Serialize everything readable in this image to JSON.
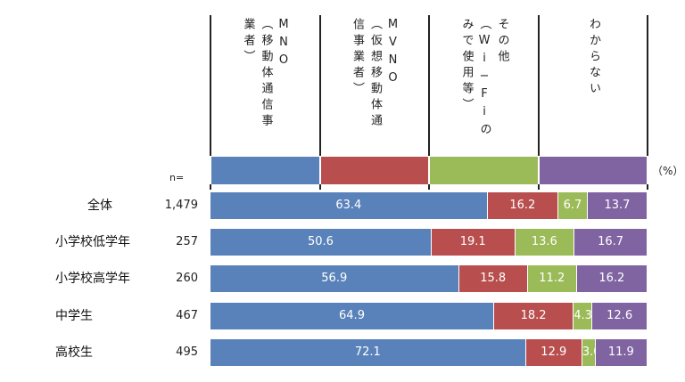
{
  "chart_data": {
    "type": "bar",
    "orientation": "horizontal",
    "stacked": true,
    "unit_label": "（%）",
    "n_label": "n=",
    "series": [
      {
        "name": "MNO（移動体通信事業者）",
        "lines": [
          "MNO",
          "（移動体通信事",
          "業者）"
        ],
        "color": "#5a82ba",
        "values": [
          63.4,
          50.6,
          56.9,
          64.9,
          72.1
        ],
        "labels": [
          "63.4",
          "50.6",
          "56.9",
          "64.9",
          "72.1"
        ]
      },
      {
        "name": "MVNO（仮想移動体通信事業者）",
        "lines": [
          "MVNO",
          "（仮想移動体通",
          "信事業者）"
        ],
        "color": "#b84f4e",
        "values": [
          16.2,
          19.1,
          15.8,
          18.2,
          12.9
        ],
        "labels": [
          "16.2",
          "19.1",
          "15.8",
          "18.2",
          "12.9"
        ]
      },
      {
        "name": "その他（Wi-Fiのみで使用等）",
        "lines": [
          "その他",
          "（Wi−Fiの",
          "みで使用等）"
        ],
        "color": "#9bbb59",
        "values": [
          6.7,
          13.6,
          11.2,
          4.3,
          3.0
        ],
        "labels": [
          "6.7",
          "13.6",
          "11.2",
          "4.3",
          "3.0"
        ]
      },
      {
        "name": "わからない",
        "lines": [
          "わからない"
        ],
        "color": "#8064a2",
        "values": [
          13.7,
          16.7,
          16.2,
          12.6,
          11.9
        ],
        "labels": [
          "13.7",
          "16.7",
          "16.2",
          "12.6",
          "11.9"
        ]
      }
    ],
    "categories": [
      "全体",
      "小学校低学年",
      "小学校高学年",
      "中学生",
      "高校生"
    ],
    "n": [
      "1,479",
      "257",
      "260",
      "467",
      "495"
    ],
    "xlim": [
      0,
      100
    ]
  }
}
